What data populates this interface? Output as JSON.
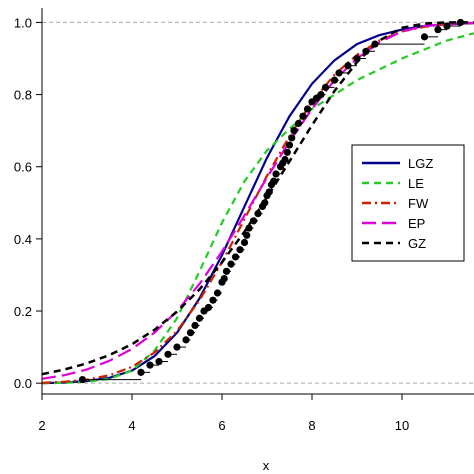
{
  "chart_data": {
    "type": "line",
    "title": "",
    "xlabel": "x",
    "ylabel": "",
    "xlim": [
      2,
      11.6
    ],
    "ylim": [
      -0.03,
      1.04
    ],
    "x_ticks": [
      2,
      4,
      6,
      8,
      10
    ],
    "y_ticks": [
      0.0,
      0.2,
      0.4,
      0.6,
      0.8,
      1.0
    ],
    "x_tick_labels": [
      "2",
      "4",
      "6",
      "8",
      "10"
    ],
    "y_tick_labels": [
      "0.0",
      "0.2",
      "0.4",
      "0.6",
      "0.8",
      "1.0"
    ],
    "reference_lines": [
      0.0,
      1.0
    ],
    "legend_position": "right",
    "series": [
      {
        "name": "LGZ",
        "color": "#00008b",
        "dash": "solid",
        "x": [
          2.0,
          2.5,
          3.0,
          3.5,
          4.0,
          4.5,
          5.0,
          5.5,
          6.0,
          6.5,
          7.0,
          7.5,
          8.0,
          8.5,
          9.0,
          9.5,
          10.0,
          10.5,
          11.0,
          11.6
        ],
        "y": [
          0.0,
          0.002,
          0.006,
          0.015,
          0.035,
          0.075,
          0.14,
          0.235,
          0.355,
          0.49,
          0.625,
          0.74,
          0.83,
          0.895,
          0.94,
          0.965,
          0.98,
          0.99,
          0.995,
          0.998
        ]
      },
      {
        "name": "LE",
        "color": "#22cc22",
        "dash": "dashed",
        "x": [
          2.0,
          2.5,
          3.0,
          3.5,
          4.0,
          4.5,
          5.0,
          5.5,
          6.0,
          6.5,
          7.0,
          7.5,
          8.0,
          8.5,
          9.0,
          9.5,
          10.0,
          10.5,
          11.0,
          11.6
        ],
        "y": [
          0.0,
          0.001,
          0.004,
          0.012,
          0.035,
          0.09,
          0.18,
          0.31,
          0.445,
          0.56,
          0.645,
          0.705,
          0.76,
          0.8,
          0.84,
          0.87,
          0.9,
          0.925,
          0.95,
          0.97
        ]
      },
      {
        "name": "FW",
        "color": "#cc2200",
        "dash": "dotdash",
        "x": [
          2.0,
          2.5,
          3.0,
          3.5,
          4.0,
          4.5,
          5.0,
          5.5,
          6.0,
          6.5,
          7.0,
          7.5,
          8.0,
          8.5,
          9.0,
          9.5,
          10.0,
          10.5,
          11.0,
          11.6
        ],
        "y": [
          0.001,
          0.004,
          0.01,
          0.022,
          0.045,
          0.085,
          0.145,
          0.23,
          0.335,
          0.455,
          0.575,
          0.685,
          0.78,
          0.855,
          0.91,
          0.95,
          0.975,
          0.988,
          0.995,
          0.998
        ]
      },
      {
        "name": "EP",
        "color": "#dd00dd",
        "dash": "longdash",
        "x": [
          2.0,
          2.5,
          3.0,
          3.5,
          4.0,
          4.5,
          5.0,
          5.5,
          6.0,
          6.5,
          7.0,
          7.5,
          8.0,
          8.5,
          9.0,
          9.5,
          10.0,
          10.5,
          11.0,
          11.6
        ],
        "y": [
          0.012,
          0.022,
          0.038,
          0.062,
          0.095,
          0.14,
          0.2,
          0.275,
          0.365,
          0.465,
          0.57,
          0.67,
          0.76,
          0.84,
          0.9,
          0.945,
          0.975,
          0.99,
          0.996,
          0.999
        ]
      },
      {
        "name": "GZ",
        "color": "#000000",
        "dash": "dashed",
        "x": [
          2.0,
          2.5,
          3.0,
          3.5,
          4.0,
          4.5,
          5.0,
          5.5,
          6.0,
          6.5,
          7.0,
          7.5,
          8.0,
          8.5,
          9.0,
          9.5,
          10.0,
          10.5,
          11.0,
          11.6
        ],
        "y": [
          0.025,
          0.038,
          0.055,
          0.078,
          0.108,
          0.148,
          0.198,
          0.26,
          0.335,
          0.42,
          0.515,
          0.615,
          0.715,
          0.81,
          0.89,
          0.95,
          0.985,
          0.997,
          1.0,
          1.0
        ]
      }
    ],
    "empirical": {
      "x": [
        2.9,
        4.2,
        4.4,
        4.6,
        4.8,
        5.0,
        5.2,
        5.3,
        5.4,
        5.5,
        5.6,
        5.7,
        5.8,
        5.9,
        6.0,
        6.05,
        6.1,
        6.2,
        6.3,
        6.4,
        6.5,
        6.55,
        6.6,
        6.7,
        6.8,
        6.9,
        6.95,
        7.0,
        7.05,
        7.1,
        7.15,
        7.2,
        7.3,
        7.35,
        7.4,
        7.45,
        7.5,
        7.55,
        7.6,
        7.7,
        7.8,
        7.9,
        8.0,
        8.1,
        8.2,
        8.3,
        8.5,
        8.6,
        8.8,
        9.0,
        9.2,
        9.4,
        10.5,
        10.8,
        11.0,
        11.3
      ],
      "y": [
        0.01,
        0.03,
        0.05,
        0.06,
        0.08,
        0.1,
        0.12,
        0.14,
        0.16,
        0.18,
        0.2,
        0.21,
        0.23,
        0.25,
        0.28,
        0.29,
        0.31,
        0.33,
        0.35,
        0.37,
        0.39,
        0.41,
        0.43,
        0.45,
        0.47,
        0.49,
        0.5,
        0.52,
        0.53,
        0.55,
        0.56,
        0.58,
        0.6,
        0.61,
        0.62,
        0.64,
        0.66,
        0.68,
        0.7,
        0.72,
        0.74,
        0.76,
        0.78,
        0.79,
        0.8,
        0.82,
        0.84,
        0.86,
        0.88,
        0.9,
        0.92,
        0.94,
        0.96,
        0.98,
        0.99,
        1.0
      ]
    }
  }
}
